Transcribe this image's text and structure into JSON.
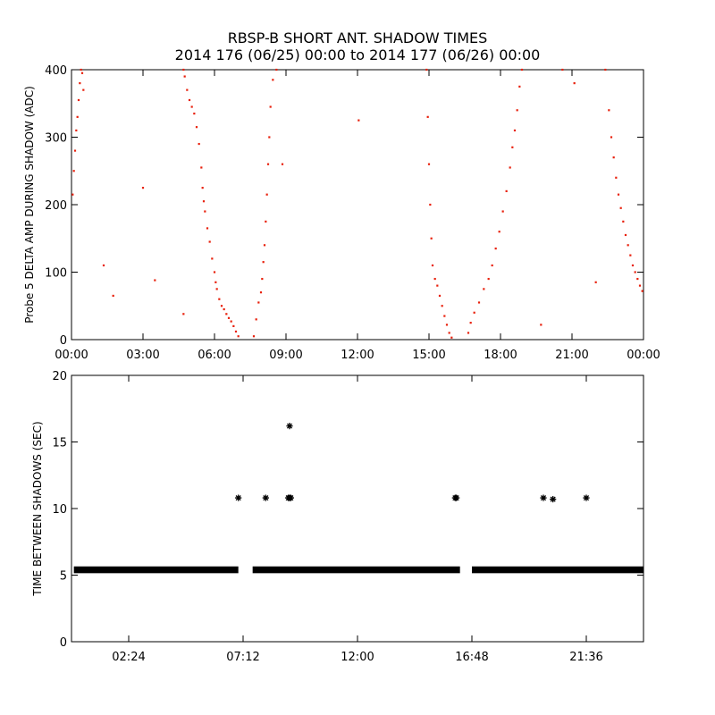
{
  "title_lines": [
    "RBSP-B SHORT ANT. SHADOW TIMES",
    "2014 176 (06/25) 00:00 to 2014 177 (06/26) 00:00"
  ],
  "colors": {
    "top_series": "#e8200c",
    "bottom_series": "#000000",
    "axes": "#000000"
  },
  "chart_data": [
    {
      "type": "scatter",
      "ylabel": "Probe 5 DELTA AMP DURING SHADOW (ADC)",
      "xlim_hours": [
        0,
        24
      ],
      "ylim": [
        0,
        400
      ],
      "x_ticks": [
        {
          "value": 0,
          "label": "00:00"
        },
        {
          "value": 3,
          "label": "03:00"
        },
        {
          "value": 6,
          "label": "06:00"
        },
        {
          "value": 9,
          "label": "09:00"
        },
        {
          "value": 12,
          "label": "12:00"
        },
        {
          "value": 15,
          "label": "15:00"
        },
        {
          "value": 18,
          "label": "18:00"
        },
        {
          "value": 21,
          "label": "21:00"
        },
        {
          "value": 24,
          "label": "00:00"
        }
      ],
      "y_ticks": [
        {
          "value": 0,
          "label": "0"
        },
        {
          "value": 100,
          "label": "100"
        },
        {
          "value": 200,
          "label": "200"
        },
        {
          "value": 300,
          "label": "300"
        },
        {
          "value": 400,
          "label": "400"
        }
      ],
      "series": [
        {
          "points": [
            [
              0.05,
              215
            ],
            [
              0.1,
              250
            ],
            [
              0.15,
              280
            ],
            [
              0.2,
              310
            ],
            [
              0.25,
              330
            ],
            [
              0.3,
              355
            ],
            [
              0.35,
              380
            ],
            [
              0.4,
              400
            ],
            [
              0.45,
              395
            ],
            [
              0.5,
              370
            ],
            [
              1.35,
              110
            ],
            [
              1.75,
              65
            ],
            [
              3.0,
              225
            ],
            [
              3.5,
              88
            ],
            [
              4.7,
              38
            ],
            [
              4.7,
              400
            ],
            [
              4.75,
              390
            ],
            [
              4.85,
              370
            ],
            [
              4.95,
              355
            ],
            [
              5.05,
              345
            ],
            [
              5.15,
              335
            ],
            [
              5.25,
              315
            ],
            [
              5.35,
              290
            ],
            [
              5.45,
              255
            ],
            [
              5.5,
              225
            ],
            [
              5.55,
              205
            ],
            [
              5.6,
              190
            ],
            [
              5.7,
              165
            ],
            [
              5.8,
              145
            ],
            [
              5.9,
              120
            ],
            [
              6.0,
              100
            ],
            [
              6.05,
              85
            ],
            [
              6.1,
              75
            ],
            [
              6.2,
              60
            ],
            [
              6.3,
              50
            ],
            [
              6.4,
              45
            ],
            [
              6.5,
              38
            ],
            [
              6.6,
              32
            ],
            [
              6.7,
              27
            ],
            [
              6.8,
              20
            ],
            [
              6.9,
              12
            ],
            [
              7.0,
              5
            ],
            [
              7.65,
              5
            ],
            [
              7.75,
              30
            ],
            [
              7.85,
              55
            ],
            [
              7.95,
              70
            ],
            [
              8.0,
              90
            ],
            [
              8.05,
              115
            ],
            [
              8.1,
              140
            ],
            [
              8.15,
              175
            ],
            [
              8.2,
              215
            ],
            [
              8.25,
              260
            ],
            [
              8.3,
              300
            ],
            [
              8.35,
              345
            ],
            [
              8.45,
              385
            ],
            [
              8.6,
              400
            ],
            [
              8.85,
              260
            ],
            [
              12.05,
              325
            ],
            [
              14.9,
              400
            ],
            [
              14.95,
              330
            ],
            [
              15.0,
              260
            ],
            [
              15.05,
              200
            ],
            [
              15.1,
              150
            ],
            [
              15.15,
              110
            ],
            [
              15.25,
              90
            ],
            [
              15.35,
              80
            ],
            [
              15.45,
              65
            ],
            [
              15.55,
              50
            ],
            [
              15.65,
              35
            ],
            [
              15.75,
              22
            ],
            [
              15.85,
              10
            ],
            [
              15.95,
              3
            ],
            [
              16.65,
              10
            ],
            [
              16.75,
              25
            ],
            [
              16.9,
              40
            ],
            [
              17.1,
              55
            ],
            [
              17.3,
              75
            ],
            [
              17.5,
              90
            ],
            [
              17.65,
              110
            ],
            [
              17.8,
              135
            ],
            [
              17.95,
              160
            ],
            [
              18.1,
              190
            ],
            [
              18.25,
              220
            ],
            [
              18.4,
              255
            ],
            [
              18.5,
              285
            ],
            [
              18.6,
              310
            ],
            [
              18.7,
              340
            ],
            [
              18.8,
              375
            ],
            [
              18.9,
              400
            ],
            [
              19.7,
              22
            ],
            [
              20.6,
              400
            ],
            [
              21.1,
              380
            ],
            [
              22.0,
              85
            ],
            [
              22.4,
              400
            ],
            [
              22.55,
              340
            ],
            [
              22.65,
              300
            ],
            [
              22.75,
              270
            ],
            [
              22.85,
              240
            ],
            [
              22.95,
              215
            ],
            [
              23.05,
              195
            ],
            [
              23.15,
              175
            ],
            [
              23.25,
              155
            ],
            [
              23.35,
              140
            ],
            [
              23.45,
              125
            ],
            [
              23.55,
              110
            ],
            [
              23.65,
              100
            ],
            [
              23.75,
              90
            ],
            [
              23.85,
              80
            ],
            [
              23.95,
              72
            ]
          ]
        }
      ]
    },
    {
      "type": "scatter",
      "ylabel": "TIME BETWEEN SHADOWS (SEC)",
      "xlim_hours": [
        0,
        24
      ],
      "ylim": [
        0,
        20
      ],
      "x_ticks": [
        {
          "value": 2.4,
          "label": "02:24"
        },
        {
          "value": 7.2,
          "label": "07:12"
        },
        {
          "value": 12.0,
          "label": "12:00"
        },
        {
          "value": 16.8,
          "label": "16:48"
        },
        {
          "value": 21.6,
          "label": "21:36"
        }
      ],
      "y_ticks": [
        {
          "value": 0,
          "label": "0"
        },
        {
          "value": 5,
          "label": "5"
        },
        {
          "value": 10,
          "label": "10"
        },
        {
          "value": 15,
          "label": "15"
        },
        {
          "value": 20,
          "label": "20"
        }
      ],
      "series": [
        {
          "baseline_value": 5.4,
          "baseline_ranges_hours": [
            [
              0.1,
              7.0
            ],
            [
              7.6,
              16.3
            ],
            [
              16.8,
              24.0
            ]
          ],
          "points": [
            [
              7.0,
              10.8
            ],
            [
              8.15,
              10.8
            ],
            [
              9.1,
              10.8
            ],
            [
              9.15,
              10.8
            ],
            [
              9.2,
              10.8
            ],
            [
              9.15,
              16.2
            ],
            [
              16.1,
              10.8
            ],
            [
              16.15,
              10.8
            ],
            [
              19.8,
              10.8
            ],
            [
              20.2,
              10.7
            ],
            [
              21.6,
              10.8
            ]
          ]
        }
      ]
    }
  ]
}
